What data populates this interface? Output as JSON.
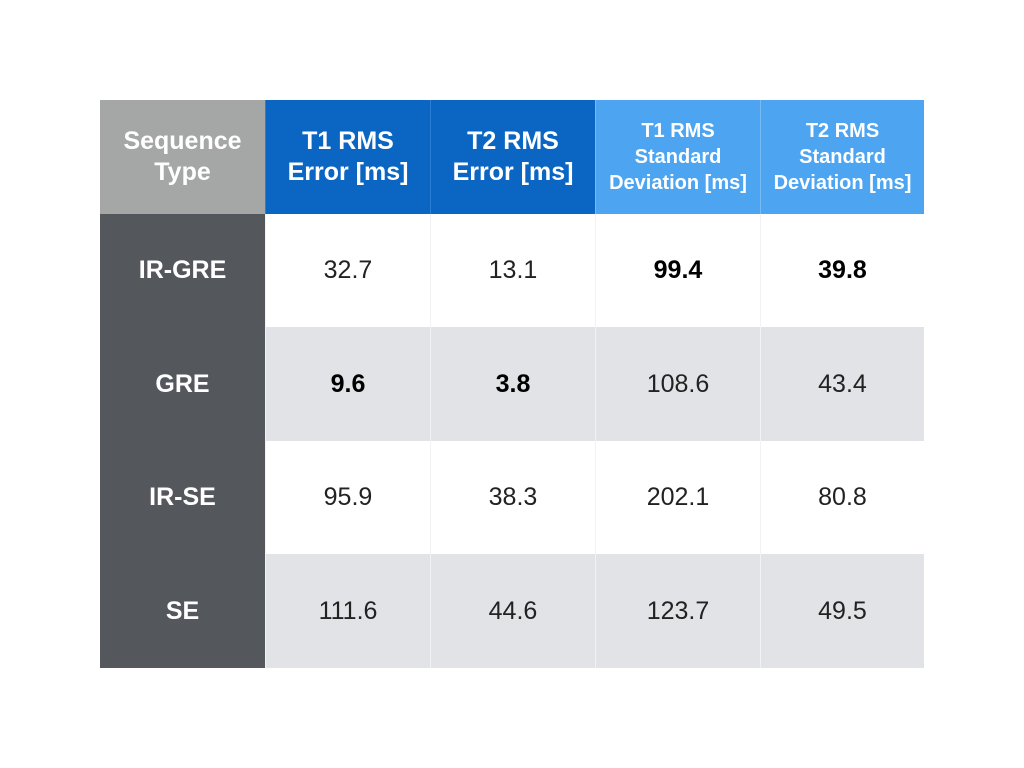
{
  "table": {
    "header": {
      "sequence_type": "Sequence Type",
      "t1_rms_error": "T1 RMS Error [ms]",
      "t2_rms_error": "T2 RMS Error [ms]",
      "t1_rms_std": "T1 RMS Standard Deviation [ms]",
      "t2_rms_std": "T2 RMS Standard Deviation [ms]"
    },
    "rows": [
      {
        "type": "IR-GRE",
        "t1_err": "32.7",
        "t2_err": "13.1",
        "t1_std": "99.4",
        "t2_std": "39.8",
        "bold": [
          "t1_std",
          "t2_std"
        ]
      },
      {
        "type": "GRE",
        "t1_err": "9.6",
        "t2_err": "3.8",
        "t1_std": "108.6",
        "t2_std": "43.4",
        "bold": [
          "t1_err",
          "t2_err"
        ]
      },
      {
        "type": "IR-SE",
        "t1_err": "95.9",
        "t2_err": "38.3",
        "t1_std": "202.1",
        "t2_std": "80.8",
        "bold": []
      },
      {
        "type": "SE",
        "t1_err": "111.6",
        "t2_err": "44.6",
        "t1_std": "123.7",
        "t2_std": "49.5",
        "bold": []
      }
    ]
  },
  "colors": {
    "header_type_bg": "#a5a6a6",
    "header_error_bg": "#0a66c2",
    "header_std_bg": "#4da5f2",
    "row_label_bg": "#54575c",
    "row_alt_bg": "#e2e3e6"
  }
}
